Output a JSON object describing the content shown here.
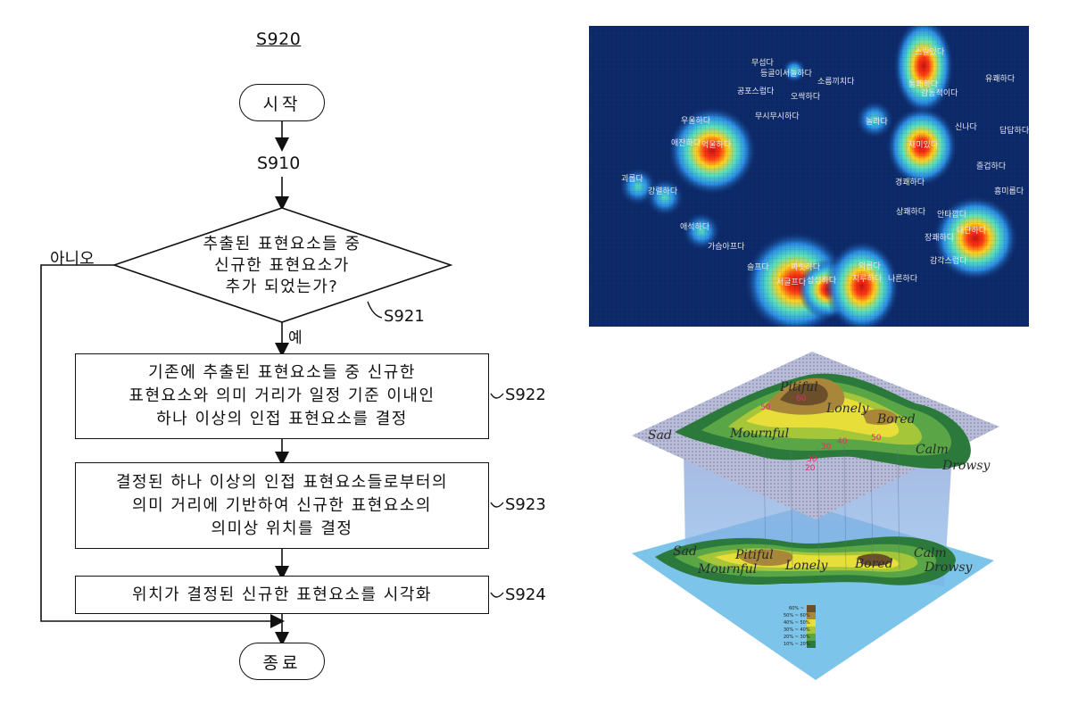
{
  "flowchart": {
    "title": "S920",
    "start": "시작",
    "step_s910": "S910",
    "decision": "추출된 표현요소들 중\n신규한 표현요소가\n추가 되었는가?",
    "decision_code": "S921",
    "no_label": "아니오",
    "yes_label": "예",
    "box1": "기존에 추출된 표현요소들 중 신규한\n표현요소와 의미 거리가 일정 기준 이내인\n하나 이상의 인접 표현요소를 결정",
    "box1_code": "S922",
    "box2": "결정된 하나 이상의 인접 표현요소들로부터의\n의미 거리에 기반하여 신규한 표현요소의\n의미상 위치를 결정",
    "box2_code": "S923",
    "box3": "위치가 결정된 신규한 표현요소를 시각화",
    "box3_code": "S924",
    "end": "종료"
  },
  "heatmap": {
    "background": "#0d2a6b",
    "labels": [
      "무섭다",
      "통쾌하다",
      "등골이서늘하다",
      "스릴있다",
      "유쾌하다",
      "소름끼치다",
      "황당하다",
      "감동적이다",
      "공포스럽다",
      "오싹하다",
      "무시무시하다",
      "놀라다",
      "신나다",
      "답답하다",
      "우울하다",
      "애잔하다",
      "재미있다",
      "억울하다",
      "즐겁하다",
      "흥미롭다",
      "괴롭다",
      "강렬하다",
      "경쾌하다",
      "상쾌하다",
      "안타깝다",
      "애석하다",
      "장쾌하다",
      "슬프다",
      "가슴아프다",
      "슬프다",
      "서글프다",
      "짜릿하다",
      "지루하다",
      "외롭다",
      "섭섭하다",
      "새롭다",
      "나른하다",
      "감각스럽다",
      "대단하다"
    ]
  },
  "emotion_map": {
    "upper_labels": [
      "Pitiful",
      "Lonely",
      "Bored",
      "Sad",
      "Mournful",
      "Calm",
      "Drowsy"
    ],
    "lower_labels": [
      "Sad",
      "Pitiful",
      "Mournful",
      "Lonely",
      "Bored",
      "Calm",
      "Drowsy"
    ],
    "contour_numbers": [
      "50",
      "60",
      "50",
      "30",
      "40",
      "30",
      "20"
    ],
    "legend": [
      "60% ~",
      "50% ~ 60%",
      "40% ~ 50%",
      "30% ~ 40%",
      "20% ~ 30%",
      "10% ~ 20%"
    ],
    "legend_colors": [
      "#6b4f2a",
      "#a8873b",
      "#e7de3a",
      "#a6c63a",
      "#5aa545",
      "#2b7a3c"
    ],
    "plane_color": "#7cc4ea"
  }
}
